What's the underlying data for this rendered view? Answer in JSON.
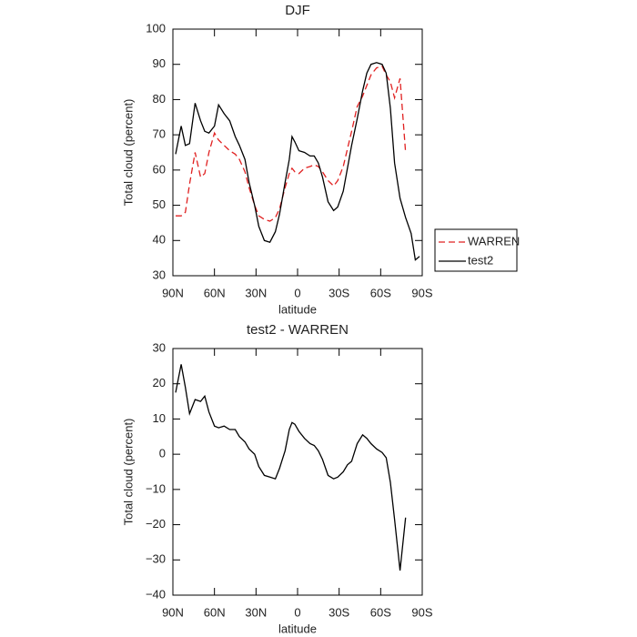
{
  "chart_data": [
    {
      "type": "line",
      "title": "DJF",
      "xlabel": "latitude",
      "ylabel": "Total cloud (percent)",
      "x": [
        88,
        84,
        81,
        78,
        74,
        70,
        67,
        64,
        60,
        57,
        53,
        49,
        45,
        42,
        38,
        35,
        31,
        28,
        24,
        20,
        16,
        13,
        9,
        6,
        4,
        2,
        -1,
        -5,
        -9,
        -12,
        -15,
        -18,
        -22,
        -26,
        -29,
        -33,
        -36,
        -39,
        -43,
        -47,
        -50,
        -53,
        -57,
        -61,
        -64,
        -67,
        -70,
        -74,
        -78,
        -82,
        -85,
        -88
      ],
      "series": [
        {
          "name": "WARREN",
          "color": "#e02020",
          "style": "dashed",
          "values": [
            47,
            47,
            48,
            56,
            65,
            58,
            59,
            65,
            70.5,
            68.5,
            67,
            65.5,
            64.5,
            63,
            59.5,
            55,
            50,
            47,
            46,
            45.5,
            46.5,
            49,
            55,
            59,
            60.5,
            59.5,
            59,
            60.5,
            61,
            61.5,
            61,
            59.5,
            57,
            55.5,
            57,
            61,
            66,
            71,
            78,
            81,
            84,
            87,
            89,
            89.5,
            87,
            85,
            80.5,
            86,
            65,
            null,
            null,
            null
          ]
        },
        {
          "name": "test2",
          "color": "#000000",
          "style": "solid",
          "values": [
            64.5,
            72.5,
            67,
            67.5,
            79,
            74,
            71,
            70.5,
            72.5,
            78.5,
            76,
            74,
            69.5,
            67,
            63,
            56.5,
            50,
            44,
            40,
            39.5,
            42.5,
            47.5,
            56.5,
            63,
            69.5,
            68,
            65.5,
            65,
            64,
            64,
            62,
            58,
            51,
            48.5,
            49.5,
            54,
            60.5,
            67,
            74.5,
            82.5,
            87.5,
            90,
            90.5,
            90,
            87.5,
            77.5,
            62,
            52,
            46.5,
            42,
            34.5,
            35.5
          ]
        }
      ],
      "xlim": [
        90,
        -90
      ],
      "xticks": [
        {
          "value": 90,
          "label": "90N"
        },
        {
          "value": 60,
          "label": "60N"
        },
        {
          "value": 30,
          "label": "30N"
        },
        0,
        {
          "value": -30,
          "label": "30S"
        },
        {
          "value": -60,
          "label": "60S"
        },
        {
          "value": -90,
          "label": "90S"
        }
      ],
      "ylim": [
        30,
        100
      ],
      "yticks": [
        30,
        40,
        50,
        60,
        70,
        80,
        90,
        100
      ],
      "legend": "right"
    },
    {
      "type": "line",
      "title": "test2 - WARREN",
      "xlabel": "latitude",
      "ylabel": "Total cloud (percent)",
      "x": [
        88,
        84,
        81,
        78,
        74,
        70,
        67,
        64,
        60,
        57,
        53,
        49,
        45,
        42,
        38,
        35,
        31,
        28,
        24,
        20,
        16,
        13,
        9,
        6,
        4,
        2,
        -1,
        -5,
        -9,
        -12,
        -15,
        -18,
        -22,
        -26,
        -29,
        -33,
        -36,
        -39,
        -43,
        -47,
        -50,
        -53,
        -57,
        -61,
        -64,
        -67,
        -70,
        -74,
        -78,
        -82,
        -85,
        -88
      ],
      "series": [
        {
          "color": "#000000",
          "style": "solid",
          "values": [
            17.5,
            25.5,
            19,
            11.5,
            15.5,
            15,
            16.5,
            12,
            8,
            7.5,
            8,
            7,
            7,
            5,
            3.5,
            1.5,
            0,
            -3.5,
            -6,
            -6.5,
            -7,
            -4,
            1,
            7,
            9,
            8.5,
            6.5,
            4.5,
            3,
            2.5,
            1,
            -1.5,
            -6,
            -7,
            -6.5,
            -5,
            -3,
            -2,
            3,
            5.5,
            4.5,
            3,
            1.5,
            0.5,
            -1,
            -8,
            -18.5,
            -33,
            -18,
            null,
            null,
            null
          ]
        }
      ],
      "xlim": [
        90,
        -90
      ],
      "xticks": [
        {
          "value": 90,
          "label": "90N"
        },
        {
          "value": 60,
          "label": "60N"
        },
        {
          "value": 30,
          "label": "30N"
        },
        0,
        {
          "value": -30,
          "label": "30S"
        },
        {
          "value": -60,
          "label": "60S"
        },
        {
          "value": -90,
          "label": "90S"
        }
      ],
      "ylim": [
        -40,
        30
      ],
      "yticks": [
        {
          "value": -40,
          "label": "−40"
        },
        {
          "value": -30,
          "label": "−30"
        },
        {
          "value": -20,
          "label": "−20"
        },
        {
          "value": -10,
          "label": "−10"
        },
        0,
        10,
        20,
        30
      ]
    }
  ]
}
